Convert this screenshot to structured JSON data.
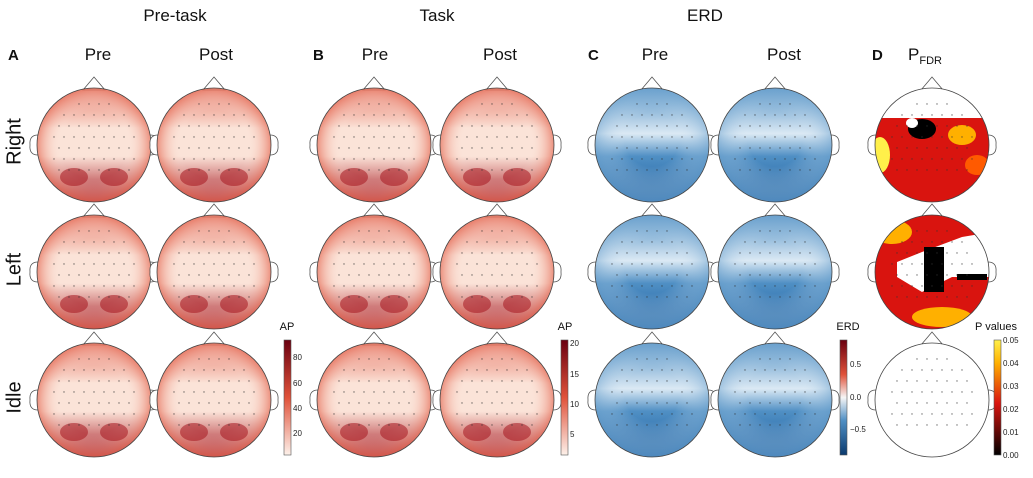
{
  "groups": [
    {
      "letter": "A",
      "title": "Pre-task",
      "cols": [
        "Pre",
        "Post"
      ]
    },
    {
      "letter": "B",
      "title": "Task",
      "cols": [
        "Pre",
        "Post"
      ]
    },
    {
      "letter": "C",
      "title": "ERD",
      "cols": [
        "Pre",
        "Post"
      ]
    },
    {
      "letter": "D",
      "title": "",
      "cols": []
    }
  ],
  "pfdr": {
    "main": "P",
    "sub": "FDR"
  },
  "rows": [
    "Right",
    "Left",
    "Idle"
  ],
  "colorbars": [
    {
      "title": "AP",
      "ticks": [
        "80",
        "60",
        "40",
        "20"
      ],
      "scheme": "reds"
    },
    {
      "title": "AP",
      "ticks": [
        "20",
        "15",
        "10",
        "5"
      ],
      "scheme": "reds"
    },
    {
      "title": "ERD",
      "ticks": [
        "0.5",
        "0.0",
        "−0.5"
      ],
      "scheme": "rdbu"
    },
    {
      "title": "P values",
      "ticks": [
        "0.05",
        "0.04",
        "0.03",
        "0.02",
        "0.01",
        "0.00"
      ],
      "scheme": "hot"
    }
  ],
  "colors": {
    "red_dark": "#a5151f",
    "red_mid": "#e0523a",
    "red_light": "#fbe3d8",
    "blue_dark": "#1f5f9f",
    "blue_mid": "#4f8fc4",
    "blue_light": "#dbe9f4",
    "hot_black": "#000000",
    "hot_red": "#d9140f",
    "hot_yellow": "#fff04a"
  }
}
